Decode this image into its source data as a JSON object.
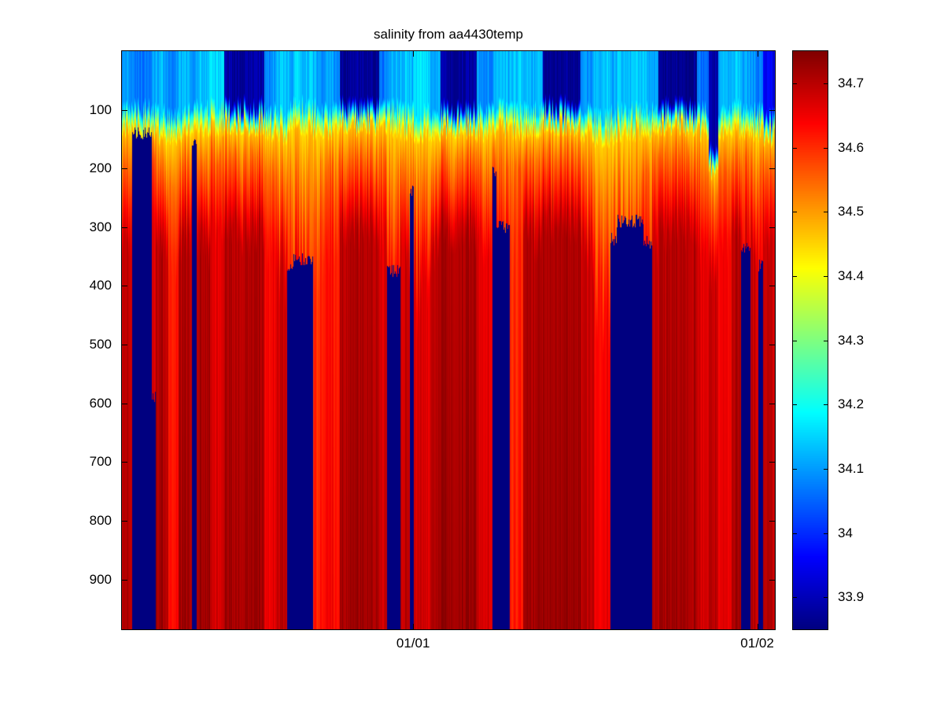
{
  "figure": {
    "background": "#ffffff"
  },
  "chart_data": {
    "type": "heatmap",
    "title": "salinity from aa4430temp",
    "xlabel": "",
    "ylabel": "",
    "x_axis": {
      "ticks": [
        {
          "label": "01/01",
          "pos": 0.446
        },
        {
          "label": "01/02",
          "pos": 0.973
        }
      ]
    },
    "y_axis": {
      "ticks": [
        100,
        200,
        300,
        400,
        500,
        600,
        700,
        800,
        900
      ],
      "range": [
        0,
        985
      ],
      "direction": "down"
    },
    "colorbar": {
      "colormap": "jet",
      "range": [
        33.85,
        34.75
      ],
      "ticks": [
        {
          "label": "33.9",
          "value": 33.9
        },
        {
          "label": "34",
          "value": 34.0
        },
        {
          "label": "34.1",
          "value": 34.1
        },
        {
          "label": "34.2",
          "value": 34.2
        },
        {
          "label": "34.3",
          "value": 34.3
        },
        {
          "label": "34.4",
          "value": 34.4
        },
        {
          "label": "34.5",
          "value": 34.5
        },
        {
          "label": "34.6",
          "value": 34.6
        },
        {
          "label": "34.7",
          "value": 34.7
        }
      ]
    },
    "columns": [
      {
        "w": 0.015,
        "surface": 34.09,
        "mld": 95,
        "wisp": 60,
        "deep": 34.68,
        "gap": null
      },
      {
        "w": 0.03,
        "surface": 34.06,
        "mld": 95,
        "wisp": 40,
        "deep": 34.66,
        "gap": 140
      },
      {
        "w": 0.006,
        "surface": 34.09,
        "mld": 100,
        "wisp": 40,
        "deep": 34.65,
        "gap": 590
      },
      {
        "w": 0.02,
        "surface": 34.12,
        "mld": 105,
        "wisp": 60,
        "deep": 34.7,
        "gap": null
      },
      {
        "w": 0.015,
        "surface": 34.09,
        "mld": 110,
        "wisp": 90,
        "deep": 34.62,
        "gap": null
      },
      {
        "w": 0.02,
        "surface": 34.12,
        "mld": 100,
        "wisp": 60,
        "deep": 34.7,
        "gap": null
      },
      {
        "w": 0.008,
        "surface": 34.1,
        "mld": 100,
        "wisp": 50,
        "deep": 34.64,
        "gap": 160
      },
      {
        "w": 0.02,
        "surface": 34.14,
        "mld": 95,
        "wisp": 70,
        "deep": 34.71,
        "gap": null
      },
      {
        "w": 0.022,
        "surface": 34.16,
        "mld": 90,
        "wisp": 50,
        "deep": 34.66,
        "gap": null
      },
      {
        "w": 0.06,
        "surface": 33.88,
        "mld": 90,
        "wisp": 60,
        "deep": 34.7,
        "gap": null
      },
      {
        "w": 0.02,
        "surface": 34.09,
        "mld": 100,
        "wisp": 80,
        "deep": 34.64,
        "gap": null
      },
      {
        "w": 0.015,
        "surface": 34.14,
        "mld": 105,
        "wisp": 120,
        "deep": 34.68,
        "gap": null
      },
      {
        "w": 0.01,
        "surface": 34.12,
        "mld": 95,
        "wisp": 150,
        "deep": 34.62,
        "gap": 370
      },
      {
        "w": 0.03,
        "surface": 34.14,
        "mld": 90,
        "wisp": 180,
        "deep": 34.65,
        "gap": 355
      },
      {
        "w": 0.01,
        "surface": 34.12,
        "mld": 95,
        "wisp": 140,
        "deep": 34.6,
        "gap": null
      },
      {
        "w": 0.03,
        "surface": 34.1,
        "mld": 100,
        "wisp": 80,
        "deep": 34.62,
        "gap": null
      },
      {
        "w": 0.06,
        "surface": 33.87,
        "mld": 90,
        "wisp": 60,
        "deep": 34.7,
        "gap": null
      },
      {
        "w": 0.012,
        "surface": 34.06,
        "mld": 95,
        "wisp": 70,
        "deep": 34.66,
        "gap": null
      },
      {
        "w": 0.02,
        "surface": 34.12,
        "mld": 95,
        "wisp": 120,
        "deep": 34.64,
        "gap": 375
      },
      {
        "w": 0.015,
        "surface": 34.14,
        "mld": 100,
        "wisp": 100,
        "deep": 34.68,
        "gap": null
      },
      {
        "w": 0.006,
        "surface": 34.12,
        "mld": 100,
        "wisp": 120,
        "deep": 34.62,
        "gap": 240
      },
      {
        "w": 0.025,
        "surface": 34.16,
        "mld": 105,
        "wisp": 140,
        "deep": 34.66,
        "gap": null
      },
      {
        "w": 0.015,
        "surface": 34.12,
        "mld": 100,
        "wisp": 80,
        "deep": 34.7,
        "gap": null
      },
      {
        "w": 0.055,
        "surface": 33.88,
        "mld": 95,
        "wisp": 60,
        "deep": 34.71,
        "gap": null
      },
      {
        "w": 0.025,
        "surface": 34.09,
        "mld": 100,
        "wisp": 70,
        "deep": 34.66,
        "gap": null
      },
      {
        "w": 0.006,
        "surface": 34.1,
        "mld": 100,
        "wisp": 60,
        "deep": 34.62,
        "gap": 205
      },
      {
        "w": 0.02,
        "surface": 34.12,
        "mld": 95,
        "wisp": 100,
        "deep": 34.64,
        "gap": 300
      },
      {
        "w": 0.02,
        "surface": 34.14,
        "mld": 100,
        "wisp": 80,
        "deep": 34.6,
        "gap": null
      },
      {
        "w": 0.03,
        "surface": 34.12,
        "mld": 100,
        "wisp": 60,
        "deep": 34.7,
        "gap": null
      },
      {
        "w": 0.058,
        "surface": 33.87,
        "mld": 90,
        "wisp": 50,
        "deep": 34.71,
        "gap": null
      },
      {
        "w": 0.02,
        "surface": 34.09,
        "mld": 100,
        "wisp": 90,
        "deep": 34.68,
        "gap": null
      },
      {
        "w": 0.025,
        "surface": 34.14,
        "mld": 110,
        "wisp": 160,
        "deep": 34.64,
        "gap": null
      },
      {
        "w": 0.01,
        "surface": 34.12,
        "mld": 105,
        "wisp": 140,
        "deep": 34.62,
        "gap": 320
      },
      {
        "w": 0.04,
        "surface": 34.14,
        "mld": 100,
        "wisp": 150,
        "deep": 34.65,
        "gap": 290
      },
      {
        "w": 0.013,
        "surface": 34.12,
        "mld": 100,
        "wisp": 120,
        "deep": 34.62,
        "gap": 325
      },
      {
        "w": 0.01,
        "surface": 34.1,
        "mld": 95,
        "wisp": 80,
        "deep": 34.68,
        "gap": null
      },
      {
        "w": 0.058,
        "surface": 33.86,
        "mld": 90,
        "wisp": 60,
        "deep": 34.7,
        "gap": null
      },
      {
        "w": 0.018,
        "surface": 34.06,
        "mld": 100,
        "wisp": 70,
        "deep": 34.66,
        "gap": null
      },
      {
        "w": 0.015,
        "surface": 33.88,
        "mld": 165,
        "wisp": 60,
        "deep": 34.68,
        "gap": null
      },
      {
        "w": 0.02,
        "surface": 34.12,
        "mld": 100,
        "wisp": 70,
        "deep": 34.64,
        "gap": null
      },
      {
        "w": 0.015,
        "surface": 34.14,
        "mld": 95,
        "wisp": 60,
        "deep": 34.7,
        "gap": null
      },
      {
        "w": 0.014,
        "surface": 34.1,
        "mld": 100,
        "wisp": 90,
        "deep": 34.66,
        "gap": 335
      },
      {
        "w": 0.012,
        "surface": 34.09,
        "mld": 100,
        "wisp": 70,
        "deep": 34.68,
        "gap": null
      },
      {
        "w": 0.007,
        "surface": 34.08,
        "mld": 100,
        "wisp": 80,
        "deep": 34.64,
        "gap": 365
      },
      {
        "w": 0.018,
        "surface": 33.95,
        "mld": 110,
        "wisp": 60,
        "deep": 34.68,
        "gap": null
      }
    ]
  }
}
